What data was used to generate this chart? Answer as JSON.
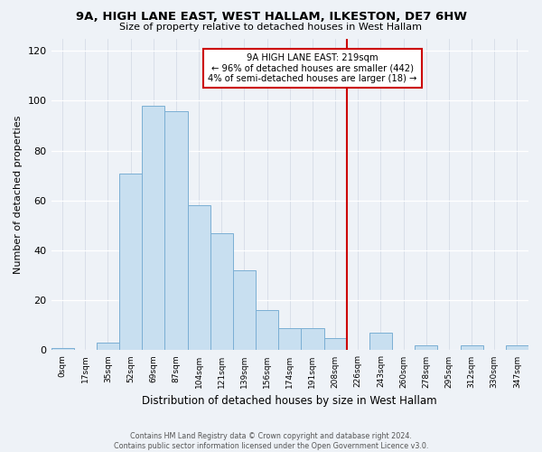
{
  "title": "9A, HIGH LANE EAST, WEST HALLAM, ILKESTON, DE7 6HW",
  "subtitle": "Size of property relative to detached houses in West Hallam",
  "xlabel": "Distribution of detached houses by size in West Hallam",
  "ylabel": "Number of detached properties",
  "bar_color": "#c8dff0",
  "bar_edge_color": "#7bafd4",
  "bin_labels": [
    "0sqm",
    "17sqm",
    "35sqm",
    "52sqm",
    "69sqm",
    "87sqm",
    "104sqm",
    "121sqm",
    "139sqm",
    "156sqm",
    "174sqm",
    "191sqm",
    "208sqm",
    "226sqm",
    "243sqm",
    "260sqm",
    "278sqm",
    "295sqm",
    "312sqm",
    "330sqm",
    "347sqm"
  ],
  "bar_heights": [
    1,
    0,
    3,
    71,
    98,
    96,
    58,
    47,
    32,
    16,
    9,
    9,
    5,
    0,
    7,
    0,
    2,
    0,
    2,
    0,
    2
  ],
  "vline_x": 13.0,
  "vline_color": "#cc0000",
  "annotation_text": "9A HIGH LANE EAST: 219sqm\n← 96% of detached houses are smaller (442)\n4% of semi-detached houses are larger (18) →",
  "annotation_box_edge_color": "#cc0000",
  "ylim": [
    0,
    125
  ],
  "yticks": [
    0,
    20,
    40,
    60,
    80,
    100,
    120
  ],
  "footer_text": "Contains HM Land Registry data © Crown copyright and database right 2024.\nContains public sector information licensed under the Open Government Licence v3.0.",
  "background_color": "#eef2f7"
}
